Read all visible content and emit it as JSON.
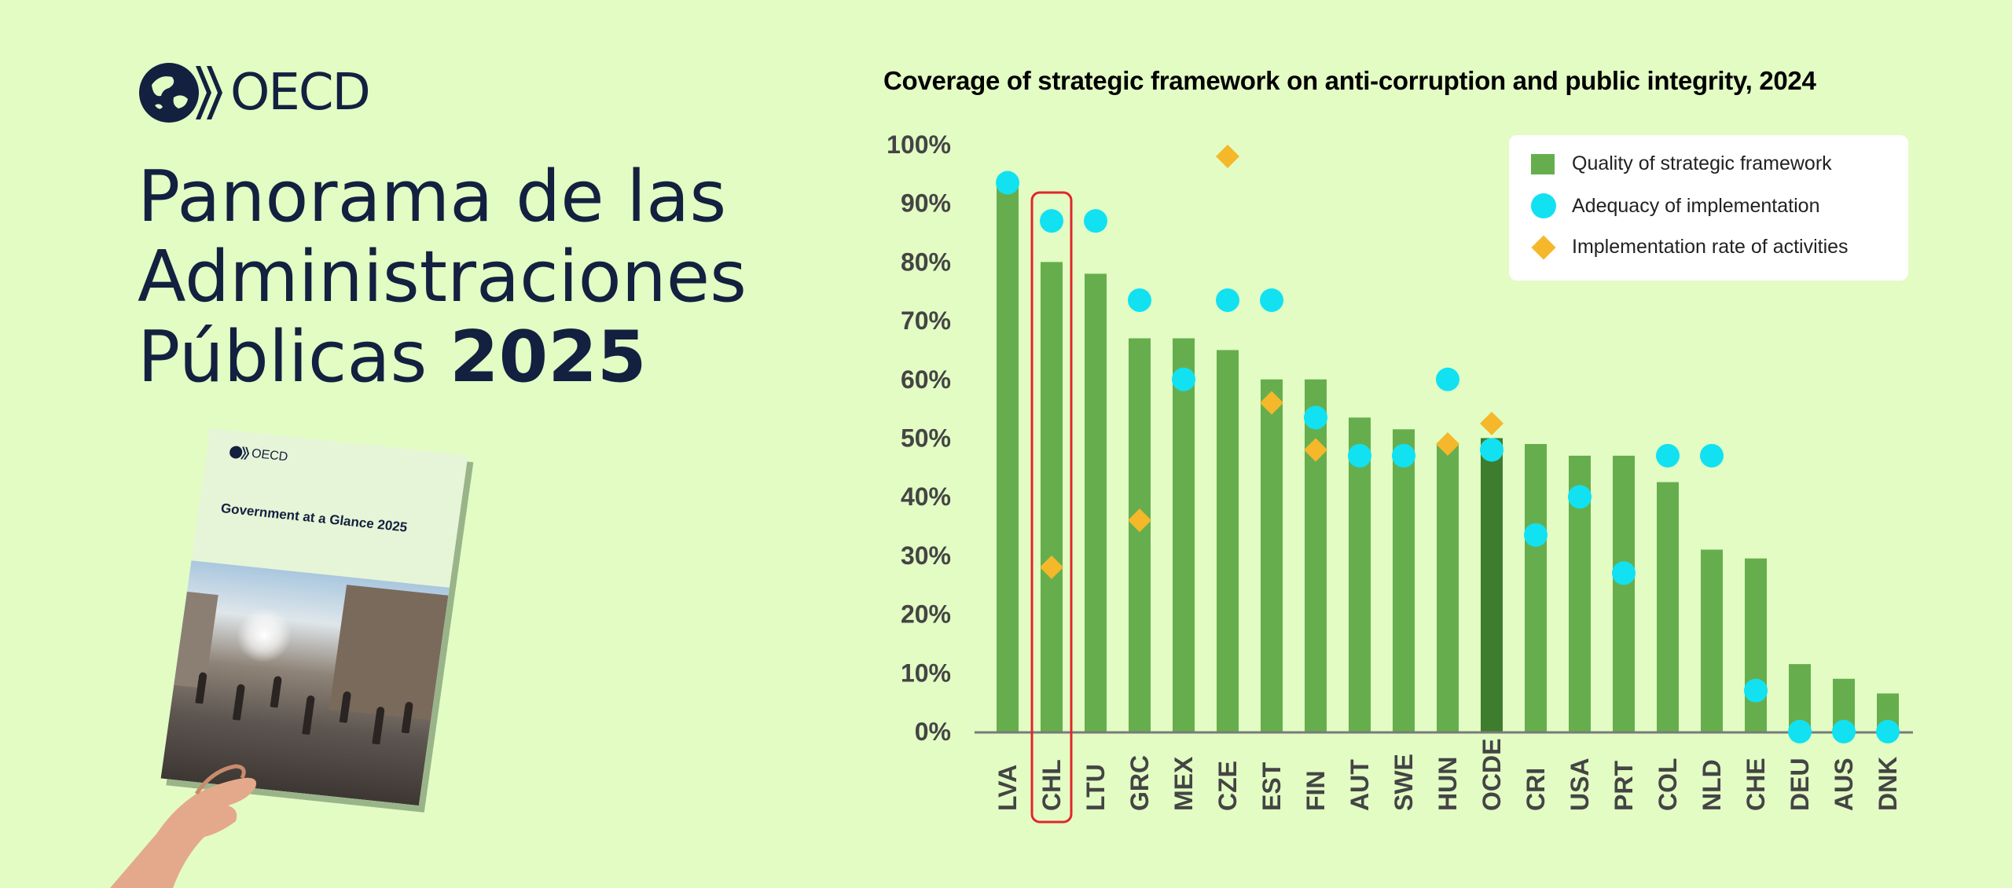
{
  "brand": {
    "logo_text": "OECD",
    "colors": {
      "background": "#e2fcc4",
      "navy": "#13203f"
    }
  },
  "headline": {
    "line1": "Panorama de las",
    "line2": "Administraciones",
    "line3_text": "Públicas",
    "line3_year": "2025"
  },
  "book": {
    "logo_text": "OECD",
    "title": "Government at a Glance 2025"
  },
  "chart_data": {
    "type": "bar",
    "title": "Coverage of strategic framework on anti-corruption and public integrity, 2024",
    "xlabel": "",
    "ylabel": "",
    "ylim": [
      0,
      100
    ],
    "yticks": [
      "0%",
      "10%",
      "20%",
      "30%",
      "40%",
      "50%",
      "60%",
      "70%",
      "80%",
      "90%",
      "100%"
    ],
    "categories": [
      "LVA",
      "CHL",
      "LTU",
      "GRC",
      "MEX",
      "CZE",
      "EST",
      "FIN",
      "AUT",
      "SWE",
      "HUN",
      "OCDE",
      "CRI",
      "USA",
      "PRT",
      "COL",
      "NLD",
      "CHE",
      "DEU",
      "AUS",
      "DNK"
    ],
    "highlighted_category": "CHL",
    "average_category": "OCDE",
    "legend_position": "top-right",
    "grid": false,
    "series": [
      {
        "name": "Quality of strategic framework",
        "marker": "bar",
        "color": "#66ae4d",
        "values": [
          93,
          80,
          78,
          67,
          67,
          65,
          60,
          60,
          53.5,
          51.5,
          49,
          50,
          49,
          47,
          47,
          42.5,
          31,
          29.5,
          11.5,
          9,
          6.5
        ]
      },
      {
        "name": "Adequacy of implementation",
        "marker": "circle",
        "color": "#12e1f1",
        "values": [
          93.5,
          87,
          87,
          73.5,
          60,
          73.5,
          73.5,
          53.5,
          47,
          47,
          60,
          48,
          33.5,
          40,
          27,
          47,
          47,
          7,
          0,
          0,
          0
        ]
      },
      {
        "name": "Implementation rate of activities",
        "marker": "diamond",
        "color": "#f5b82a",
        "values": [
          null,
          28,
          null,
          36,
          null,
          98,
          56,
          48,
          null,
          null,
          49,
          52.5,
          null,
          null,
          null,
          null,
          null,
          null,
          null,
          null,
          null
        ]
      }
    ]
  }
}
